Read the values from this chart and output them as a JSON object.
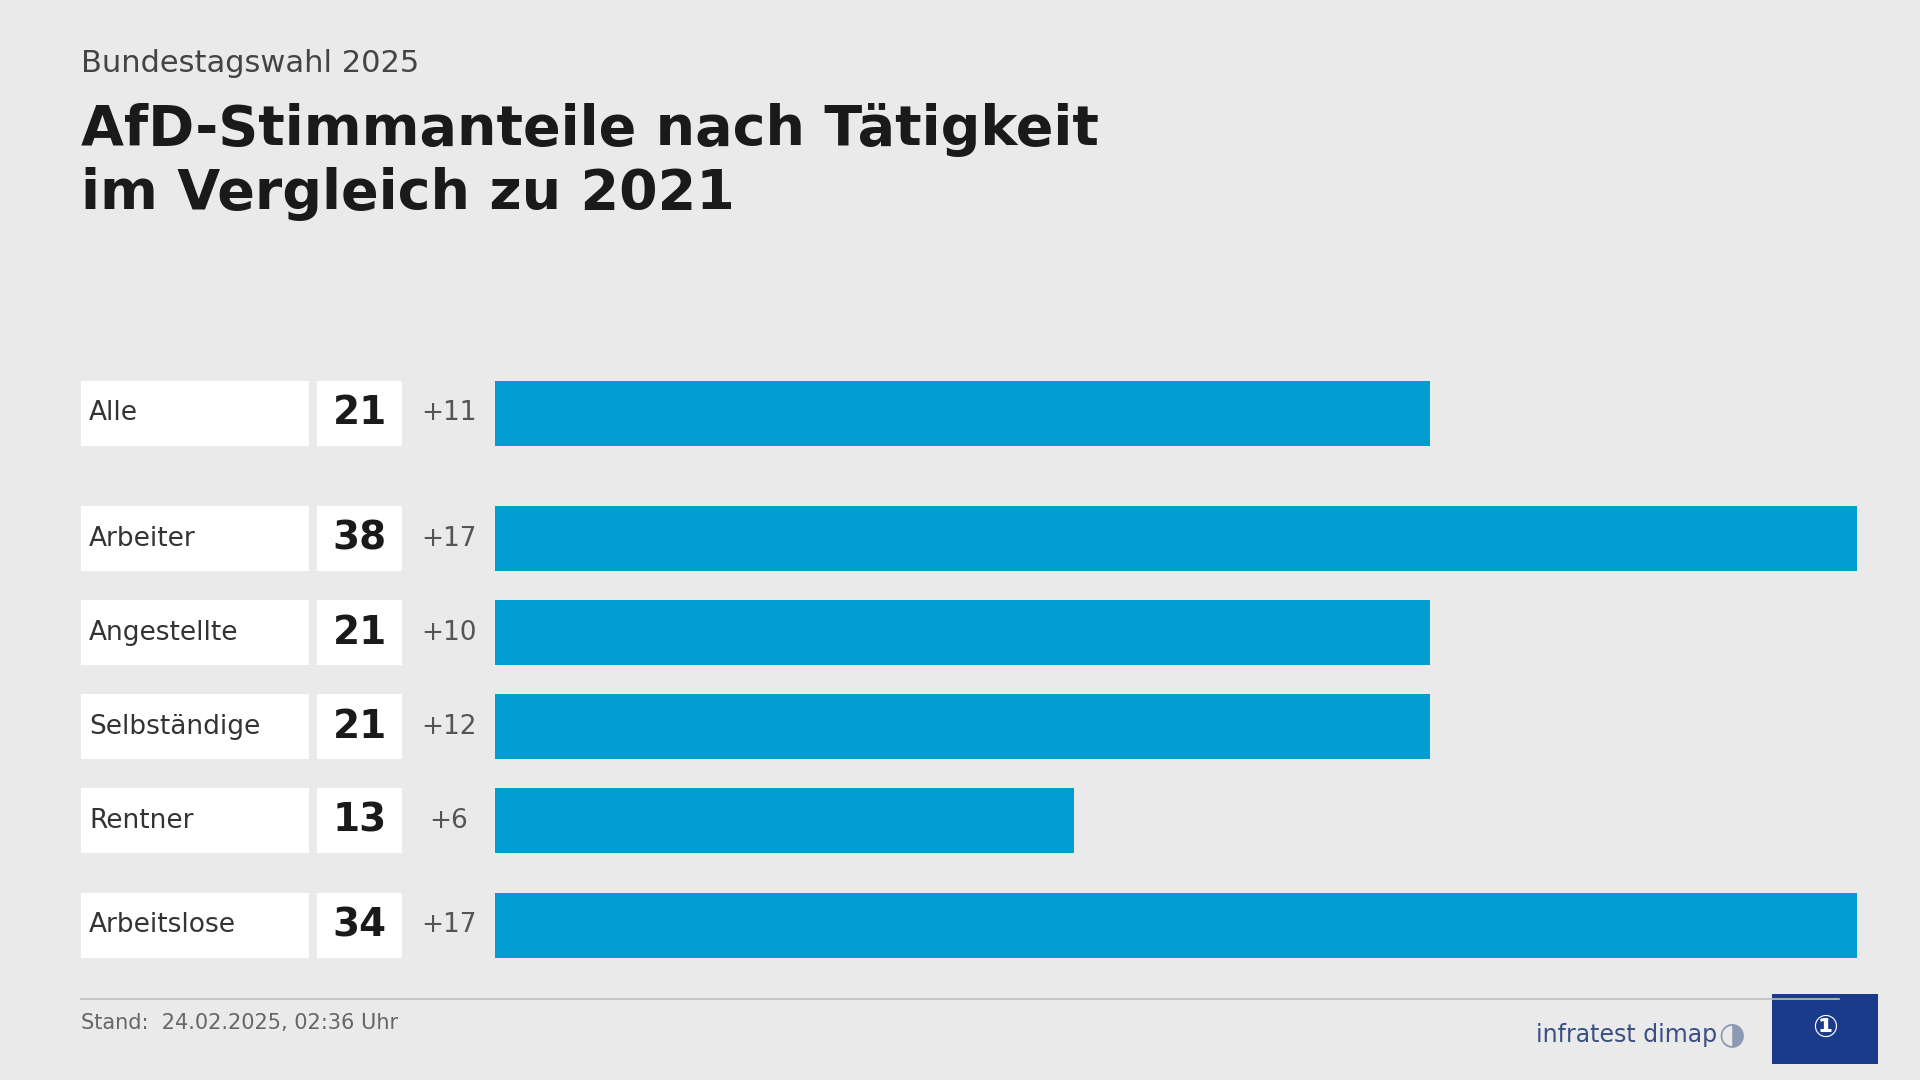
{
  "supertitle": "Bundestagswahl 2025",
  "title": "AfD-Stimmanteile nach Tätigkeit\nim Vergleich zu 2021",
  "categories": [
    "Alle",
    "Arbeiter",
    "Angestellte",
    "Selbständige",
    "Rentner",
    "Arbeitslose"
  ],
  "values": [
    21,
    38,
    21,
    21,
    13,
    34
  ],
  "changes": [
    "+11",
    "+17",
    "+10",
    "+12",
    "+6",
    "+17"
  ],
  "bar_color": "#009DD1",
  "bg_color": "#EAEAEA",
  "white_box_color": "#FFFFFF",
  "bar_max": 38,
  "footer_left": "Stand:  24.02.2025, 02:36 Uhr",
  "footer_right": "infratest dimap",
  "title_fontsize": 40,
  "supertitle_fontsize": 22,
  "category_fontsize": 19,
  "value_fontsize": 28,
  "change_fontsize": 19,
  "footer_fontsize": 15
}
